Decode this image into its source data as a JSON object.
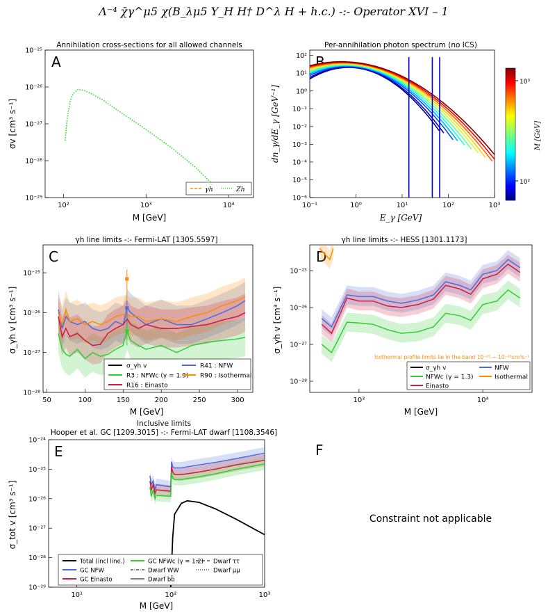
{
  "header": {
    "title": "Λ⁻⁴ χ̄γ^μ5 χ(B_λμ5 Y_H H† D^λ H + h.c.) -:- Operator XVI – 1"
  },
  "panels": {
    "A": {
      "letter": "A",
      "title": "Annihilation cross-sections for all allowed channels",
      "xlabel": "M [GeV]",
      "ylabel": "σv [cm³ s⁻¹]",
      "xticks": [
        "10²",
        "10³",
        "10⁴"
      ],
      "yticks": [
        "10⁻²⁵",
        "10⁻²⁶",
        "10⁻²⁷",
        "10⁻²⁸",
        "10⁻²⁹"
      ],
      "legend": [
        {
          "label": "γh",
          "color": "#ff8c00"
        },
        {
          "label": "Zh",
          "color": "#22dd22"
        }
      ]
    },
    "B": {
      "letter": "B",
      "title": "Per-annihilation photon spectrum (no ICS)",
      "xlabel": "E_γ [GeV]",
      "ylabel": "dn_γ/dE_γ [GeV⁻¹]",
      "xticks": [
        "10⁻¹",
        "10⁰",
        "10¹",
        "10²",
        "10³"
      ],
      "yticks": [
        "10²",
        "10¹",
        "10⁰",
        "10⁻¹",
        "10⁻²",
        "10⁻³",
        "10⁻⁴",
        "10⁻⁵",
        "10⁻⁶"
      ],
      "colorbar_label": "M [GeV]",
      "colorbar_ticks": [
        "10³",
        "10²"
      ]
    },
    "C": {
      "letter": "C",
      "title": "γh line limits -:- Fermi-LAT [1305.5597]",
      "xlabel": "M [GeV]",
      "ylabel": "σ_γh v [cm³ s⁻¹]",
      "xticks": [
        "50",
        "100",
        "150",
        "200",
        "250",
        "300"
      ],
      "yticks": [
        "10⁻²⁵",
        "10⁻²⁶",
        "10⁻²⁷",
        "10⁻²⁸"
      ],
      "legend": [
        {
          "label": "σ_γh v",
          "color": "#000000"
        },
        {
          "label": "R41 : NFW",
          "color": "#4a6cdb"
        },
        {
          "label": "R3 : NFWc (γ = 1.3)",
          "color": "#33cc33"
        },
        {
          "label": "R90 : Isothermal",
          "color": "#ff8c00"
        },
        {
          "label": "R16 : Einasto",
          "color": "#d11a3c"
        }
      ]
    },
    "D": {
      "letter": "D",
      "title": "γh line limits -:- HESS [1301.1173]",
      "xlabel": "M [GeV]",
      "ylabel": "σ_γh v [cm³ s⁻¹]",
      "xticks": [
        "10³",
        "10⁴"
      ],
      "yticks": [
        "10⁻²⁵",
        "10⁻²⁶",
        "10⁻²⁷",
        "10⁻²⁸"
      ],
      "note": "Isothermal profile limits lie in the band 10⁻²⁵ − 10⁻²³cm³s⁻¹",
      "legend": [
        {
          "label": "σ_γh v",
          "color": "#000000"
        },
        {
          "label": "NFW",
          "color": "#4a6cdb"
        },
        {
          "label": "NFWc (γ = 1.3)",
          "color": "#33cc33"
        },
        {
          "label": "Isothermal",
          "color": "#ff8c00"
        },
        {
          "label": "Einasto",
          "color": "#d11a3c"
        }
      ]
    },
    "E": {
      "letter": "E",
      "title1": "Inclusive limits",
      "title2": "Hooper et al. GC [1209.3015] -:- Fermi-LAT dwarf [1108.3546]",
      "xlabel": "M [GeV]",
      "ylabel": "σ_tot v [cm³ s⁻¹]",
      "xticks": [
        "10¹",
        "10²",
        "10³"
      ],
      "yticks": [
        "10⁻²⁴",
        "10⁻²⁵",
        "10⁻²⁶",
        "10⁻²⁷",
        "10⁻²⁸",
        "10⁻²⁹"
      ],
      "legend": [
        {
          "label": "Total (incl line.)",
          "color": "#000000"
        },
        {
          "label": "GC NFWc (γ = 1.2)",
          "color": "#33cc33"
        },
        {
          "label": "Dwarf ττ",
          "color": "#000000"
        },
        {
          "label": "GC NFW",
          "color": "#4a6cdb"
        },
        {
          "label": "Dwarf WW",
          "color": "#000000"
        },
        {
          "label": "Dwarf μμ",
          "color": "#000000"
        },
        {
          "label": "GC Einasto",
          "color": "#d11a3c"
        },
        {
          "label": "Dwarf bb̄",
          "color": "#000000"
        }
      ]
    },
    "F": {
      "letter": "F",
      "message": "Constraint not applicable"
    }
  },
  "chart_data": [
    {
      "panel": "A",
      "type": "line",
      "xscale": "log",
      "yscale": "log",
      "xlim": [
        60,
        20000
      ],
      "ylim": [
        1e-29,
        1e-25
      ],
      "series": [
        {
          "name": "Zh",
          "x": [
            105,
            110,
            120,
            130,
            150,
            180,
            220,
            300,
            500,
            1000,
            2000,
            4000,
            8000
          ],
          "y": [
            3.5e-28,
            1.2e-27,
            4e-27,
            6.5e-27,
            8.6e-27,
            8e-27,
            6.5e-27,
            4.4e-27,
            2e-27,
            7e-28,
            2.3e-28,
            6.5e-29,
            1.4e-29
          ]
        }
      ]
    },
    {
      "panel": "B",
      "type": "line",
      "xscale": "log",
      "yscale": "log",
      "xlim": [
        0.1,
        1000
      ],
      "ylim": [
        1e-06,
        200
      ],
      "series_masses": [
        70,
        90,
        130,
        180,
        250,
        350,
        500,
        700,
        1000,
        1400,
        2000
      ],
      "lines": [
        {
          "E": 14,
          "height": 80
        },
        {
          "E": 45,
          "height": 80
        },
        {
          "E": 65,
          "height": 80
        }
      ]
    },
    {
      "panel": "C",
      "type": "line",
      "xscale": "linear",
      "yscale": "log",
      "xlim": [
        45,
        320
      ],
      "ylim": [
        1e-28,
        5e-25
      ],
      "x": [
        65,
        70,
        75,
        80,
        90,
        100,
        110,
        120,
        130,
        140,
        150,
        155,
        160,
        170,
        180,
        200,
        220,
        240,
        260,
        280,
        300,
        310
      ],
      "series": [
        {
          "name": "R41 : NFW",
          "y": [
            1.2e-26,
            4e-27,
            8e-27,
            6e-27,
            5e-27,
            6e-27,
            4e-27,
            3.5e-27,
            4e-27,
            6e-27,
            5e-27,
            1.3e-26,
            1e-26,
            7e-27,
            5e-27,
            7e-27,
            5e-27,
            5e-27,
            7e-27,
            1e-26,
            1.5e-26,
            2e-26
          ]
        },
        {
          "name": "R3 : NFWc (γ = 1.3)",
          "y": [
            3e-27,
            1.2e-27,
            9e-28,
            8e-28,
            1.2e-27,
            7e-28,
            1e-27,
            8e-28,
            9e-28,
            1.2e-27,
            1.5e-27,
            3.5e-27,
            2e-27,
            1.5e-27,
            1.2e-27,
            1.5e-27,
            1e-27,
            1.5e-27,
            1.8e-27,
            2e-27,
            2.2e-27,
            2.4e-27
          ]
        },
        {
          "name": "R90 : Isothermal",
          "y": [
            1e-26,
            5e-27,
            1.2e-26,
            6e-27,
            7e-27,
            5e-27,
            6e-27,
            5e-27,
            6e-27,
            8e-27,
            9e-27,
            9e-27,
            8e-27,
            8e-27,
            6e-27,
            7e-27,
            6e-27,
            8e-27,
            1e-26,
            1.5e-26,
            2e-26,
            2.5e-26
          ]
        },
        {
          "name": "R16 : Einasto",
          "y": [
            8e-27,
            2.5e-27,
            4e-27,
            2.5e-27,
            3e-27,
            2e-27,
            1.5e-27,
            1.6e-27,
            3e-27,
            4e-27,
            5e-27,
            7e-27,
            5e-27,
            4e-27,
            5e-27,
            4e-27,
            4e-27,
            4.5e-27,
            5e-27,
            6.5e-27,
            8e-27,
            1e-26
          ]
        }
      ],
      "errorbars": [
        {
          "x": 155,
          "y": 7e-26,
          "low": 2e-26,
          "high": 1.2e-25,
          "color": "#ff8c00"
        },
        {
          "x": 155,
          "y": 1.3e-26,
          "low": 4e-27,
          "high": 2e-26,
          "color": "#4a6cdb"
        },
        {
          "x": 155,
          "y": 3.5e-27,
          "low": 1.5e-27,
          "high": 5e-27,
          "color": "#33cc33"
        }
      ]
    },
    {
      "panel": "D",
      "type": "line",
      "xscale": "log",
      "yscale": "log",
      "xlim": [
        400,
        25000
      ],
      "ylim": [
        5e-29,
        5e-25
      ],
      "x": [
        500,
        600,
        800,
        1000,
        1300,
        1700,
        2200,
        3000,
        4000,
        5000,
        6500,
        8000,
        10000,
        13000,
        16000,
        20000
      ],
      "series": [
        {
          "name": "NFW",
          "y": [
            5e-27,
            3e-27,
            2.2e-26,
            2e-26,
            2e-26,
            1.5e-26,
            1.3e-26,
            1.6e-26,
            2.2e-26,
            5e-26,
            4e-26,
            3e-26,
            8e-26,
            1e-25,
            2e-25,
            1.2e-25
          ]
        },
        {
          "name": "Einasto",
          "y": [
            3.5e-27,
            2e-27,
            1.8e-26,
            1.5e-26,
            1.5e-26,
            1.1e-26,
            1e-26,
            1.2e-26,
            1.7e-26,
            4e-26,
            3.2e-26,
            2.3e-26,
            6e-26,
            8e-26,
            1.5e-25,
            9e-26
          ]
        },
        {
          "name": "NFWc (γ = 1.3)",
          "y": [
            1e-27,
            6e-28,
            4e-27,
            3.8e-27,
            3.5e-27,
            2.5e-27,
            2e-27,
            2.2e-27,
            3e-27,
            7e-27,
            6e-27,
            4.5e-27,
            1.2e-26,
            1.5e-26,
            3e-26,
            1.8e-26
          ]
        },
        {
          "name": "Isothermal",
          "x": [
            480,
            520,
            580,
            620
          ],
          "y": [
            4e-25,
            3e-25,
            2e-25,
            4e-25
          ]
        }
      ]
    },
    {
      "panel": "E",
      "type": "line",
      "xscale": "log",
      "yscale": "log",
      "xlim": [
        5,
        1000
      ],
      "ylim": [
        1e-29,
        1e-24
      ],
      "series": [
        {
          "name": "Total (incl line.)",
          "x": [
            100,
            105,
            110,
            130,
            150,
            200,
            300,
            500,
            1000
          ],
          "y": [
            1e-29,
            5e-28,
            3e-27,
            7e-27,
            8.5e-27,
            7.5e-27,
            4.5e-27,
            2e-27,
            6e-28
          ]
        },
        {
          "name": "GC NFW",
          "x": [
            60,
            62,
            65,
            68,
            70,
            100,
            102,
            105,
            110,
            130,
            150,
            200,
            300,
            500,
            1000
          ],
          "y": [
            6e-26,
            3e-26,
            4e-26,
            2e-26,
            3e-26,
            2.5e-26,
            1.8e-25,
            1.2e-25,
            1.1e-25,
            1.1e-25,
            1.2e-25,
            1.4e-25,
            1.7e-25,
            2.3e-25,
            3.5e-25
          ]
        },
        {
          "name": "GC Einasto",
          "x": [
            60,
            62,
            65,
            68,
            70,
            100,
            102,
            105,
            110,
            130,
            150,
            200,
            300,
            500,
            1000
          ],
          "y": [
            4e-26,
            2e-26,
            3e-26,
            1.5e-26,
            2e-26,
            1.8e-26,
            1.2e-25,
            8e-26,
            6.5e-26,
            6.5e-26,
            7e-26,
            8e-26,
            1e-25,
            1.4e-25,
            2e-25
          ]
        },
        {
          "name": "GC NFWc (γ = 1.2)",
          "x": [
            60,
            62,
            65,
            68,
            70,
            100,
            102,
            105,
            110,
            130,
            150,
            200,
            300,
            500,
            1000
          ],
          "y": [
            2.5e-26,
            1.2e-26,
            2e-26,
            1e-26,
            1.3e-26,
            1.2e-26,
            8e-26,
            5e-26,
            4.5e-26,
            4.5e-26,
            4.8e-26,
            5.5e-26,
            7e-26,
            1e-25,
            1.5e-25
          ]
        }
      ]
    }
  ]
}
